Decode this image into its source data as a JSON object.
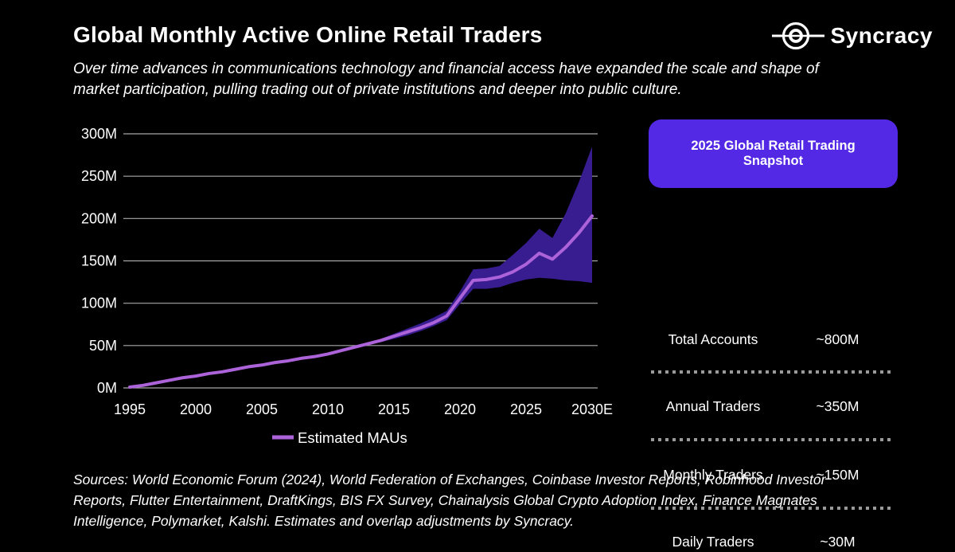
{
  "page": {
    "background": "#000000",
    "text_color": "#ffffff"
  },
  "header": {
    "title": "Global Monthly Active Online Retail Traders",
    "subtitle_lines": [
      "Over time advances in communications technology and financial access have expanded the scale and shape of",
      "market participation, pulling trading out of private institutions and deeper into public culture."
    ],
    "logo": {
      "text": "Syncracy",
      "icon": "orbit-circle-icon"
    }
  },
  "chart_data": {
    "type": "line",
    "title": "Global Monthly Active Online Retail Traders",
    "xlabel": "",
    "ylabel": "",
    "x": [
      1995,
      1996,
      1997,
      1998,
      1999,
      2000,
      2001,
      2002,
      2003,
      2004,
      2005,
      2006,
      2007,
      2008,
      2009,
      2010,
      2011,
      2012,
      2013,
      2014,
      2015,
      2016,
      2017,
      2018,
      2019,
      2020,
      2021,
      2022,
      2023,
      2024,
      2025,
      2026,
      2027,
      2028,
      2029,
      2030
    ],
    "series": [
      {
        "name": "Estimated MAUs",
        "values": [
          1,
          3,
          6,
          9,
          12,
          14,
          17,
          19,
          22,
          25,
          27,
          30,
          32,
          35,
          37,
          40,
          44,
          48,
          52,
          56,
          61,
          66,
          71,
          77,
          85,
          106,
          127,
          128,
          131,
          137,
          146,
          159,
          152,
          166,
          183,
          203
        ]
      }
    ],
    "band": {
      "name": "estimate-uncertainty-range",
      "low": [
        1,
        3,
        6,
        9,
        12,
        14,
        17,
        19,
        22,
        25,
        27,
        30,
        32,
        35,
        37,
        40,
        44,
        48,
        52,
        54,
        58,
        62,
        67,
        73,
        80,
        99,
        117,
        117,
        119,
        124,
        128,
        130,
        129,
        127,
        126,
        124
      ],
      "high": [
        1,
        3,
        6,
        9,
        12,
        14,
        17,
        19,
        22,
        25,
        27,
        30,
        32,
        35,
        37,
        40,
        44,
        48,
        52,
        58,
        64,
        70,
        76,
        83,
        91,
        114,
        140,
        141,
        144,
        157,
        171,
        188,
        177,
        206,
        243,
        285
      ]
    },
    "ylim": [
      0,
      300
    ],
    "y_ticks": [
      0,
      50,
      100,
      150,
      200,
      250,
      300
    ],
    "y_tick_labels": [
      "0M",
      "50M",
      "100M",
      "150M",
      "200M",
      "250M",
      "300M"
    ],
    "x_ticks": [
      1995,
      2000,
      2005,
      2010,
      2015,
      2020,
      2025,
      2030
    ],
    "x_tick_labels": [
      "1995",
      "2000",
      "2005",
      "2010",
      "2015",
      "2020",
      "2025",
      "2030E"
    ],
    "grid": "horizontal",
    "legend": {
      "label": "Estimated MAUs",
      "position": "bottom-center"
    },
    "colors": {
      "line": "#ac62d8",
      "band": "#381d90",
      "grid": "#a8a8a8",
      "tick_text": "#ffffff"
    }
  },
  "snapshot_panel": {
    "header": "2025 Global Retail Trading Snapshot",
    "header_bg": "#5329e6",
    "rows": [
      {
        "label": "Total Accounts",
        "value": "~800M"
      },
      {
        "label": "Annual Traders",
        "value": "~350M"
      },
      {
        "label": "Monthly Traders",
        "value": "~150M"
      },
      {
        "label": "Daily Traders",
        "value": "~30M"
      }
    ]
  },
  "footer": {
    "sources_lines": [
      "Sources: World Economic Forum (2024), World Federation of Exchanges, Coinbase Investor Reports, Robinhood Investor",
      "Reports, Flutter Entertainment, DraftKings, BIS FX Survey, Chainalysis Global Crypto Adoption Index, Finance Magnates",
      "Intelligence, Polymarket, Kalshi. Estimates and overlap adjustments by Syncracy."
    ]
  }
}
